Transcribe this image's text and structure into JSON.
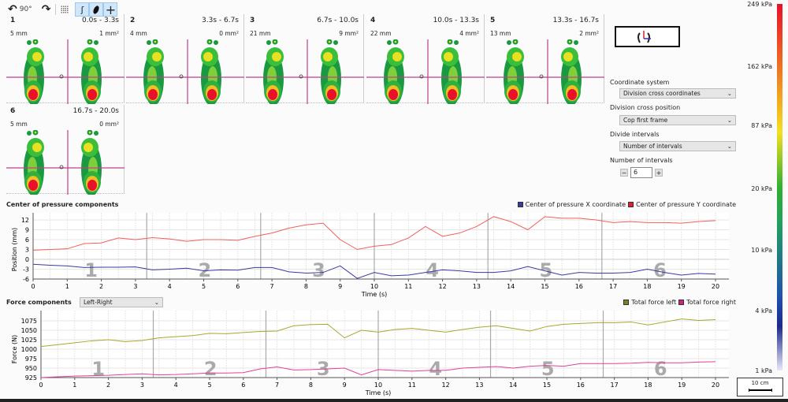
{
  "toolbar": {
    "rotate_label": "90°",
    "icons": [
      "rotate-left-icon",
      "rotate-right-icon",
      "grid-icon",
      "foot-outline-icon",
      "foot-fill-icon",
      "crosshair-icon"
    ]
  },
  "panels": [
    {
      "num": "1",
      "time": "0.0s - 3.3s",
      "mm": "5 mm",
      "area": "1 mm²"
    },
    {
      "num": "2",
      "time": "3.3s - 6.7s",
      "mm": "4 mm",
      "area": "0 mm²"
    },
    {
      "num": "3",
      "time": "6.7s - 10.0s",
      "mm": "21 mm",
      "area": "9 mm²"
    },
    {
      "num": "4",
      "time": "10.0s - 13.3s",
      "mm": "22 mm",
      "area": "4 mm²"
    },
    {
      "num": "5",
      "time": "13.3s - 16.7s",
      "mm": "13 mm",
      "area": "2 mm²"
    },
    {
      "num": "6",
      "time": "16.7s - 20.0s",
      "mm": "5 mm",
      "area": "0 mm²"
    }
  ],
  "settings": {
    "coord_label": "Coordinate system",
    "coord_value": "Division cross coordinates",
    "cross_label": "Division cross position",
    "cross_value": "Cop first frame",
    "divide_label": "Divide intervals",
    "divide_value": "Number of intervals",
    "num_label": "Number of intervals",
    "num_value": "6",
    "minus": "−",
    "plus": "+"
  },
  "colorbar": {
    "labels": [
      "249 kPa",
      "162 kPa",
      "87 kPa",
      "20 kPa",
      "10 kPa",
      "4 kPa",
      "1 kPa"
    ],
    "scale_label": "10 cm"
  },
  "chart_data": [
    {
      "type": "line",
      "title": "Center of pressure components",
      "xlabel": "Time (s)",
      "ylabel": "Position (mm)",
      "xlim": [
        0,
        20
      ],
      "ylim": [
        -6,
        13
      ],
      "yticks": [
        "12",
        "9",
        "6",
        "3",
        "0",
        "-3",
        "-6"
      ],
      "xticks": [
        "0",
        "1",
        "2",
        "3",
        "4",
        "5",
        "6",
        "7",
        "8",
        "9",
        "10",
        "11",
        "12",
        "13",
        "14",
        "15",
        "16",
        "17",
        "18",
        "19",
        "20"
      ],
      "interval_labels": [
        "1",
        "2",
        "3",
        "4",
        "5",
        "6"
      ],
      "interval_bounds": [
        3.33,
        6.67,
        10,
        13.33,
        16.67
      ],
      "x": [
        0,
        0.5,
        1,
        1.5,
        2,
        2.5,
        3,
        3.5,
        4,
        4.5,
        5,
        5.5,
        6,
        6.5,
        7,
        7.5,
        8,
        8.5,
        9,
        9.5,
        10,
        10.5,
        11,
        11.5,
        12,
        12.5,
        13,
        13.5,
        14,
        14.5,
        15,
        15.5,
        16,
        16.5,
        17,
        17.5,
        18,
        18.5,
        19,
        19.5,
        20
      ],
      "series": [
        {
          "name": "Center of pressure X coordinate",
          "color": "#3a3aa0",
          "values": [
            -1.5,
            -1.8,
            -2,
            -2.5,
            -2.4,
            -2.4,
            -2.3,
            -3.2,
            -3,
            -2.7,
            -3.5,
            -3.2,
            -3.3,
            -2.5,
            -2.5,
            -3.8,
            -4.2,
            -4,
            -2,
            -5.8,
            -4,
            -5,
            -4.8,
            -4,
            -3.2,
            -3.5,
            -4,
            -4,
            -3.5,
            -2.2,
            -3.5,
            -4.8,
            -4,
            -4.2,
            -4.2,
            -4,
            -3,
            -4,
            -4.8,
            -4.3,
            -4.5
          ]
        },
        {
          "name": "Center of pressure Y coordinate",
          "color": "#f06060",
          "values": [
            2.8,
            3,
            3.2,
            4.8,
            5,
            6.5,
            6,
            6.6,
            6.2,
            5.5,
            6,
            6,
            5.8,
            7,
            8,
            9.5,
            10.5,
            11,
            6,
            3,
            4,
            4.5,
            6.5,
            10,
            7,
            8,
            10,
            13,
            11.5,
            9,
            13,
            12.5,
            12.5,
            12,
            11.2,
            11.5,
            11.2,
            11.2,
            11,
            11.5,
            11.8
          ]
        }
      ]
    },
    {
      "type": "line",
      "title": "Force components",
      "selector": "Left-Right",
      "xlabel": "Time (s)",
      "ylabel": "Force (N)",
      "xlim": [
        0,
        20
      ],
      "ylim": [
        925,
        1085
      ],
      "yticks": [
        "1075",
        "1050",
        "1025",
        "1000",
        "975",
        "950",
        "925"
      ],
      "xticks": [
        "0",
        "1",
        "2",
        "3",
        "4",
        "5",
        "6",
        "7",
        "8",
        "9",
        "10",
        "11",
        "12",
        "13",
        "14",
        "15",
        "16",
        "17",
        "18",
        "19",
        "20"
      ],
      "interval_labels": [
        "1",
        "2",
        "3",
        "4",
        "5",
        "6"
      ],
      "interval_bounds": [
        3.33,
        6.67,
        10,
        13.33,
        16.67
      ],
      "x": [
        0,
        0.5,
        1,
        1.5,
        2,
        2.5,
        3,
        3.5,
        4,
        4.5,
        5,
        5.5,
        6,
        6.5,
        7,
        7.5,
        8,
        8.5,
        9,
        9.5,
        10,
        10.5,
        11,
        11.5,
        12,
        12.5,
        13,
        13.5,
        14,
        14.5,
        15,
        15.5,
        16,
        16.5,
        17,
        17.5,
        18,
        18.5,
        19,
        19.5,
        20
      ],
      "series": [
        {
          "name": "Total force left",
          "color": "#a8a830",
          "values": [
            1007,
            1012,
            1017,
            1022,
            1025,
            1020,
            1023,
            1030,
            1033,
            1036,
            1042,
            1041,
            1044,
            1047,
            1048,
            1062,
            1065,
            1066,
            1030,
            1050,
            1045,
            1052,
            1055,
            1050,
            1045,
            1052,
            1058,
            1062,
            1055,
            1048,
            1060,
            1066,
            1068,
            1070,
            1070,
            1072,
            1064,
            1072,
            1080,
            1076,
            1078
          ]
        },
        {
          "name": "Total force right",
          "color": "#e0409a",
          "values": [
            925,
            927,
            929,
            930,
            931,
            933,
            935,
            932,
            933,
            935,
            937,
            937,
            938,
            948,
            953,
            945,
            946,
            948,
            950,
            932,
            946,
            944,
            942,
            944,
            944,
            950,
            952,
            954,
            950,
            955,
            957,
            955,
            962,
            962,
            962,
            963,
            965,
            964,
            964,
            966,
            967
          ]
        }
      ]
    }
  ]
}
